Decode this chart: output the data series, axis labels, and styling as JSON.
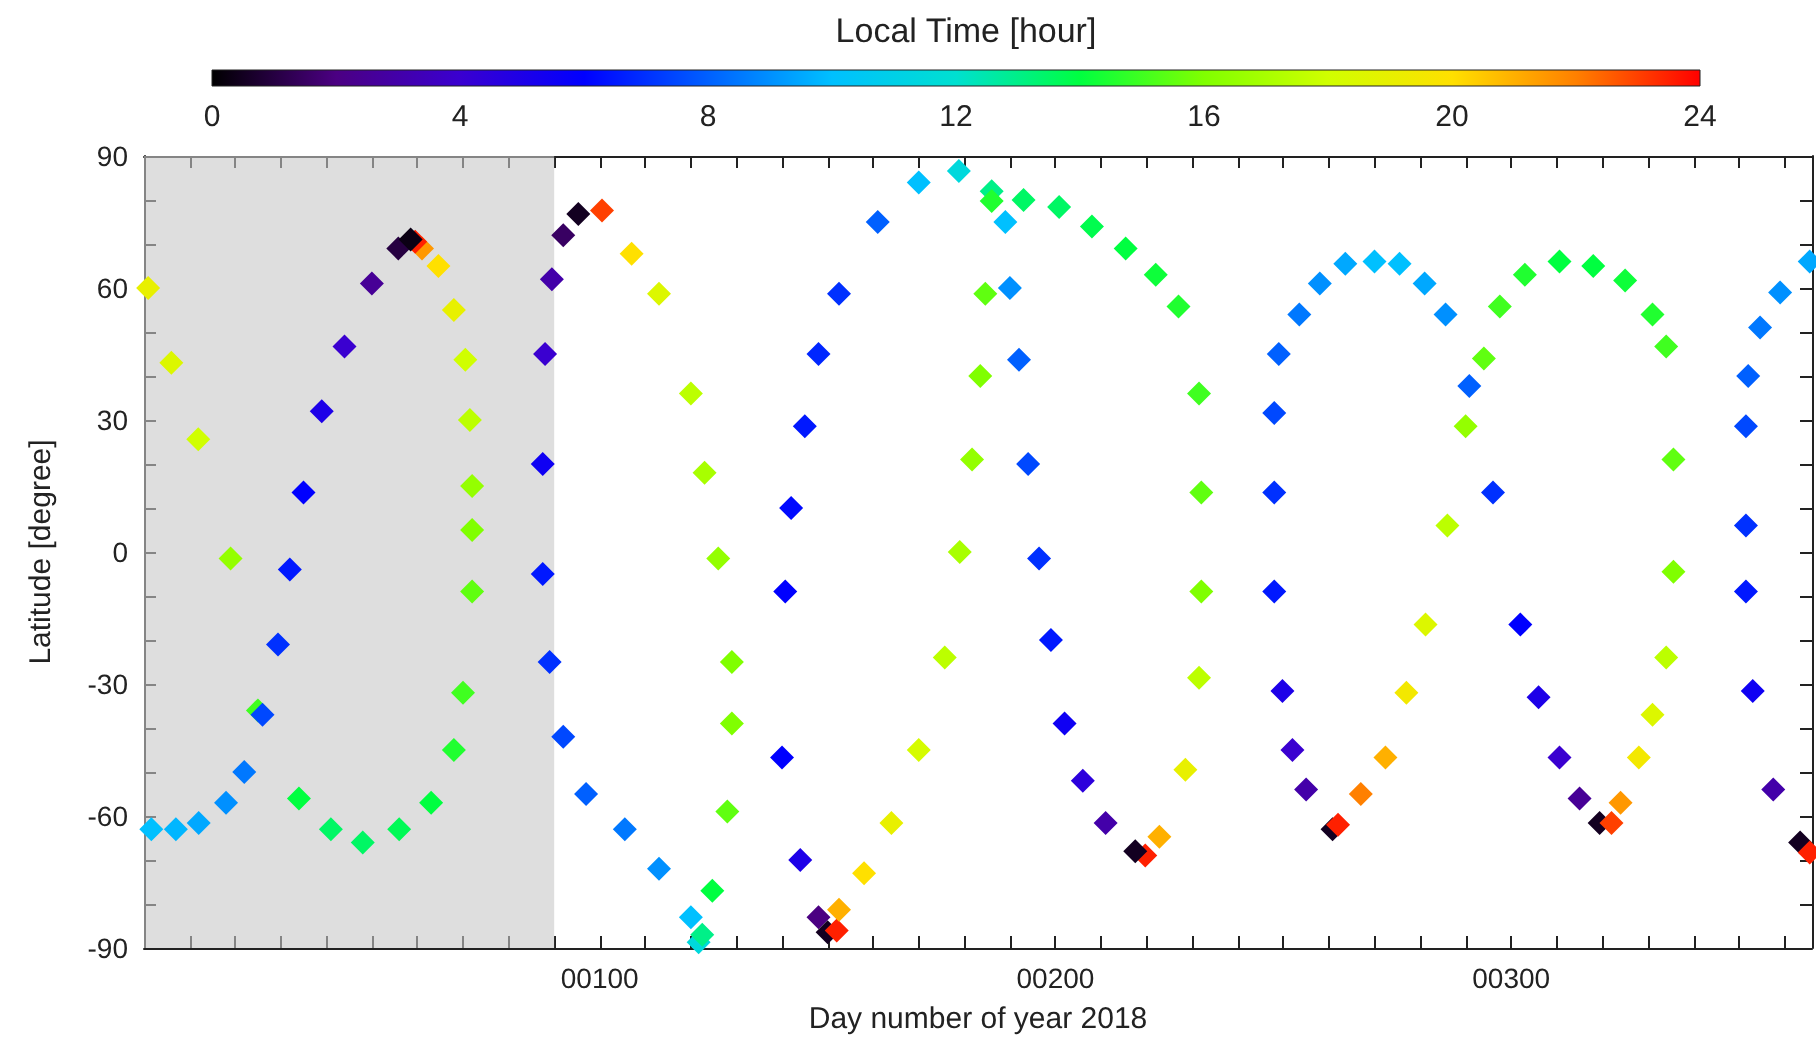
{
  "chart_data": {
    "type": "scatter",
    "xlabel": "Day number of year 2018",
    "ylabel": "Latitude [degree]",
    "clabel": "Local Time [hour]",
    "marker": "diamond",
    "grid": false,
    "xlim": [
      0,
      366
    ],
    "ylim": [
      -90,
      90
    ],
    "xticks": [
      {
        "value": 0,
        "label": null
      },
      {
        "value": 10,
        "label": null
      },
      {
        "value": 20,
        "label": null
      },
      {
        "value": 30,
        "label": null
      },
      {
        "value": 40,
        "label": null
      },
      {
        "value": 50,
        "label": null
      },
      {
        "value": 60,
        "label": null
      },
      {
        "value": 70,
        "label": null
      },
      {
        "value": 80,
        "label": null
      },
      {
        "value": 90,
        "label": null
      },
      {
        "value": 100,
        "label": "00100"
      },
      {
        "value": 110,
        "label": null
      },
      {
        "value": 120,
        "label": null
      },
      {
        "value": 130,
        "label": null
      },
      {
        "value": 140,
        "label": null
      },
      {
        "value": 150,
        "label": null
      },
      {
        "value": 160,
        "label": null
      },
      {
        "value": 170,
        "label": null
      },
      {
        "value": 180,
        "label": null
      },
      {
        "value": 190,
        "label": null
      },
      {
        "value": 200,
        "label": "00200"
      },
      {
        "value": 210,
        "label": null
      },
      {
        "value": 220,
        "label": null
      },
      {
        "value": 230,
        "label": null
      },
      {
        "value": 240,
        "label": null
      },
      {
        "value": 250,
        "label": null
      },
      {
        "value": 260,
        "label": null
      },
      {
        "value": 270,
        "label": null
      },
      {
        "value": 280,
        "label": null
      },
      {
        "value": 290,
        "label": null
      },
      {
        "value": 300,
        "label": "00300"
      },
      {
        "value": 310,
        "label": null
      },
      {
        "value": 320,
        "label": null
      },
      {
        "value": 330,
        "label": null
      },
      {
        "value": 340,
        "label": null
      },
      {
        "value": 350,
        "label": null
      },
      {
        "value": 360,
        "label": null
      }
    ],
    "yticks": [
      -90,
      {
        "value": -80,
        "label": null
      },
      {
        "value": -70,
        "label": null
      },
      -60,
      {
        "value": -50,
        "label": null
      },
      {
        "value": -40,
        "label": null
      },
      -30,
      {
        "value": -20,
        "label": null
      },
      {
        "value": -10,
        "label": null
      },
      0,
      {
        "value": 10,
        "label": null
      },
      {
        "value": 20,
        "label": null
      },
      30,
      {
        "value": 40,
        "label": null
      },
      {
        "value": 50,
        "label": null
      },
      60,
      {
        "value": 70,
        "label": null
      },
      {
        "value": 80,
        "label": null
      },
      90
    ],
    "clim": [
      0,
      24
    ],
    "cticks": [
      0,
      4,
      8,
      12,
      16,
      20,
      24
    ],
    "bands": [
      {
        "axis": "x",
        "from": 0,
        "to": 90,
        "color": "#c8c8c8"
      }
    ],
    "x": [
      0.9,
      6,
      11.9,
      19,
      25,
      34,
      41,
      48,
      56,
      63,
      68,
      70,
      72,
      72,
      72,
      71.5,
      70.5,
      68,
      64.6,
      61,
      59.5,
      1.6,
      7,
      12,
      18,
      22,
      26,
      29.4,
      32,
      35,
      39,
      44,
      50,
      55.8,
      58.5,
      88,
      87.5,
      87.5,
      89,
      92,
      97,
      105.5,
      113,
      120,
      121.7,
      89.5,
      92,
      95.3,
      100.5,
      107,
      113,
      120,
      123,
      126,
      129,
      129,
      128,
      124.7,
      122.5,
      140,
      140.7,
      142,
      145,
      148,
      152.5,
      161,
      170,
      178.8,
      186,
      144,
      148,
      150,
      152,
      152.5,
      158,
      164,
      170,
      175.7,
      179,
      181.7,
      183.5,
      184.6,
      186,
      193,
      200.8,
      208,
      215.4,
      222,
      227,
      231.5,
      232,
      232,
      231.5,
      228.5,
      222.8,
      219.7,
      189,
      190,
      192,
      194,
      196.4,
      199,
      202,
      206,
      211,
      217.5,
      248,
      248,
      248,
      249.8,
      252,
      255,
      260.8,
      249,
      253.5,
      258,
      263.6,
      270,
      275.5,
      281,
      285.6,
      290.8,
      296,
      302,
      306,
      310.6,
      315,
      319.4,
      262,
      267,
      272.4,
      277,
      281.2,
      286,
      290,
      294,
      297.5,
      303,
      310.6,
      318,
      325,
      331,
      334,
      335.6,
      335.6,
      334,
      331,
      328,
      324,
      322,
      351.5,
      351.5,
      351.5,
      353,
      357.5,
      363.4,
      365.5,
      352,
      354.6,
      359,
      365.5
    ],
    "values": [
      60,
      43,
      25.6,
      -1.5,
      -36,
      -56,
      -63,
      -66,
      -63,
      -57,
      -45,
      -32,
      -9,
      5,
      15,
      30,
      43.7,
      55,
      65,
      69,
      70.5,
      -63,
      -63,
      -61.6,
      -57,
      -50,
      -37,
      -21,
      -4,
      13.5,
      32,
      46.7,
      61,
      69,
      71,
      45,
      20,
      -5,
      -25,
      -42,
      -55,
      -63,
      -72,
      -83,
      -88.7,
      62,
      72,
      76.8,
      77.6,
      67.8,
      58.7,
      36,
      18,
      -1.5,
      -25,
      -39,
      -59,
      -77,
      -87,
      -46.7,
      -9,
      10,
      28.6,
      45,
      58.7,
      75,
      84,
      86.6,
      82,
      -70,
      -83,
      -86.4,
      -86,
      -81.3,
      -73,
      -61.6,
      -45,
      -24,
      0,
      21,
      40,
      58.7,
      79.8,
      80,
      78.4,
      74,
      69,
      63,
      55.8,
      36,
      13.5,
      -9,
      -28.6,
      -49.5,
      -64.7,
      -69,
      75,
      60,
      43.7,
      20,
      -1.5,
      -20,
      -39,
      -52,
      -61.6,
      -68,
      31.6,
      13.5,
      -9,
      -31.6,
      -45,
      -54,
      -63,
      45,
      54,
      61,
      65.5,
      66,
      65.5,
      61,
      54,
      37.7,
      13.5,
      -16.5,
      -33,
      -46.7,
      -56,
      -61.6,
      -62,
      -55,
      -46.7,
      -32,
      -16.5,
      6,
      28.6,
      44,
      55.8,
      63,
      66,
      65,
      61.7,
      54,
      46.7,
      21,
      -4.5,
      -24,
      -37,
      -46.7,
      -57,
      -61.6,
      28.6,
      6,
      -9,
      -31.6,
      -54,
      -66,
      -68.3,
      40,
      51,
      59,
      66
    ],
    "cvalues": [
      19,
      18.5,
      18,
      16.5,
      15,
      14,
      13.5,
      13.5,
      13.7,
      14,
      14.5,
      15,
      15.5,
      16,
      16.5,
      17.5,
      18,
      19,
      20,
      21.5,
      23.5,
      10,
      9.8,
      9.5,
      9,
      8.5,
      7.5,
      7,
      6.5,
      6,
      5,
      4,
      2.5,
      1,
      0.3,
      4,
      5.5,
      6.5,
      7,
      7.5,
      8,
      8.5,
      9,
      10,
      11.5,
      3,
      1.5,
      0.5,
      23,
      20,
      18.5,
      17.5,
      17,
      16.5,
      16,
      16,
      15.5,
      14,
      13,
      6,
      6,
      6.2,
      6.5,
      6.8,
      7,
      8,
      10,
      11.5,
      13,
      5,
      2,
      0.5,
      23.5,
      21,
      20,
      19,
      18.2,
      17.5,
      17,
      16.5,
      16,
      15.5,
      14.5,
      13.5,
      13.5,
      13.8,
      14,
      14.2,
      14.5,
      15,
      15.5,
      16,
      17.5,
      19,
      21,
      23.5,
      10,
      9,
      8,
      7.5,
      7,
      6.5,
      5.5,
      4.5,
      3,
      0.5,
      7.5,
      7,
      6.5,
      5,
      4,
      3,
      0.5,
      8,
      8.5,
      9,
      9.5,
      10,
      10,
      9.5,
      9,
      8,
      7,
      6,
      5,
      4,
      2.5,
      0.5,
      23.5,
      22,
      21,
      19.5,
      18.5,
      17.5,
      16.5,
      15.5,
      15,
      14.5,
      14,
      14,
      14.2,
      14.5,
      15,
      15.5,
      16,
      17.5,
      18.5,
      19.5,
      21.5,
      23,
      7.5,
      7,
      6.5,
      5.5,
      3,
      0.5,
      23.5,
      8,
      8.5,
      9,
      9.5
    ]
  }
}
